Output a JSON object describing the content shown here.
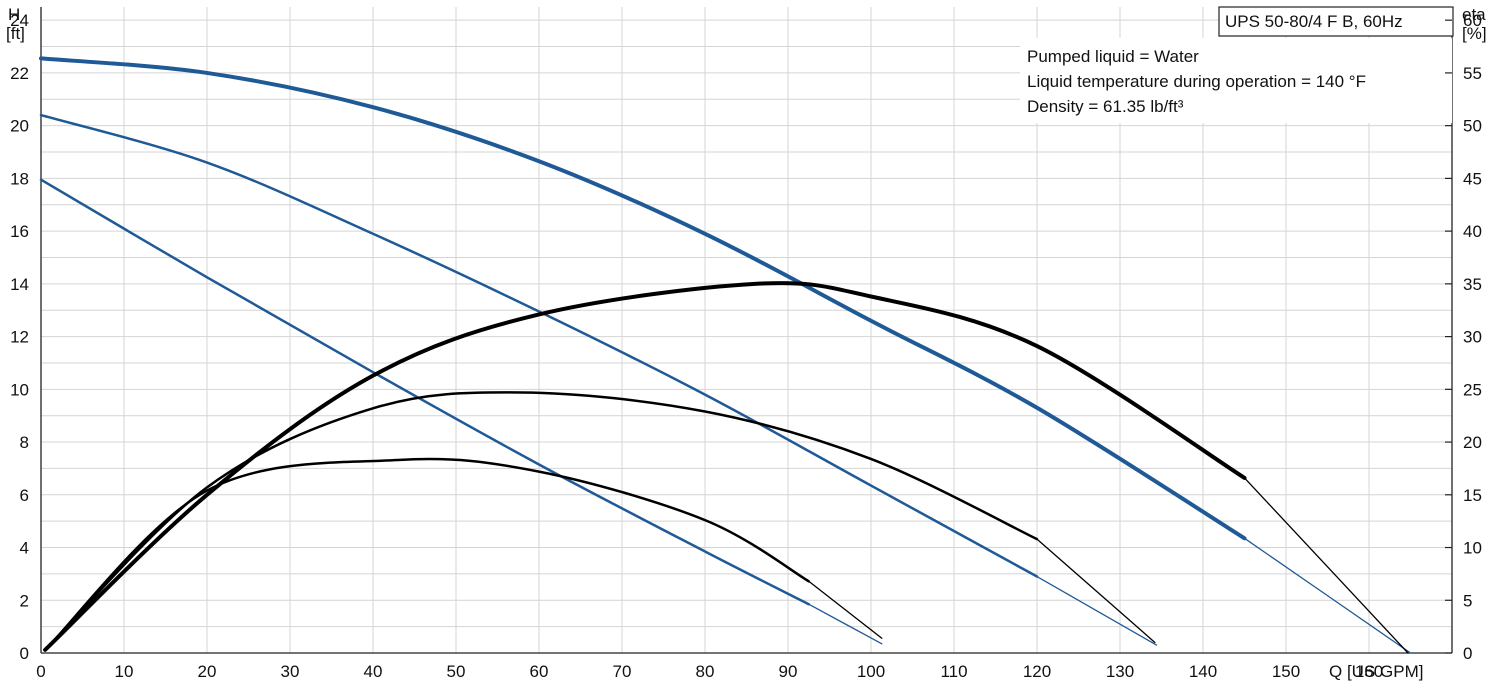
{
  "chart_data": {
    "type": "line",
    "title": "UPS 50-80/4 F B, 60Hz",
    "info_lines": [
      "Pumped liquid = Water",
      "Liquid temperature during operation = 140 °F",
      "Density = 61.35 lb/ft³"
    ],
    "y_left_label": [
      "H",
      "[ft]"
    ],
    "y_right_label": [
      "eta",
      "[%]"
    ],
    "x_label": "Q [US GPM]",
    "xlim": [
      0,
      170
    ],
    "ylim_left": [
      0,
      24.5
    ],
    "ylim_right": [
      0,
      61.25
    ],
    "x_ticks": [
      0,
      10,
      20,
      30,
      40,
      50,
      60,
      70,
      80,
      90,
      100,
      110,
      120,
      130,
      140,
      150,
      160
    ],
    "y_left_ticks": [
      0,
      2,
      4,
      6,
      8,
      10,
      12,
      14,
      16,
      18,
      20,
      22,
      24
    ],
    "y_right_ticks": [
      0,
      5,
      10,
      15,
      20,
      25,
      30,
      35,
      40,
      45,
      50,
      55,
      60
    ],
    "grid": true,
    "colors": {
      "head": "#1f5a96",
      "efficiency": "#000000",
      "grid": "#d4d4d4"
    },
    "series": [
      {
        "kind": "head",
        "axis": "left",
        "width_solid": 4,
        "x": [
          0,
          20,
          40,
          60,
          80,
          100,
          120,
          145,
          165
        ],
        "values": [
          22.55,
          22.0,
          20.7,
          18.65,
          15.9,
          12.6,
          9.3,
          4.35,
          0
        ],
        "solid_until": 145
      },
      {
        "kind": "head",
        "axis": "left",
        "width_solid": 2.5,
        "x": [
          0,
          20,
          40,
          60,
          80,
          100,
          120,
          134.4
        ],
        "values": [
          20.4,
          18.6,
          15.9,
          12.95,
          9.8,
          6.35,
          2.9,
          0.3
        ],
        "solid_until": 120
      },
      {
        "kind": "head",
        "axis": "left",
        "width_solid": 2.5,
        "x": [
          0,
          20,
          40,
          60,
          80,
          92.5,
          101.3
        ],
        "values": [
          17.95,
          14.25,
          10.65,
          7.15,
          3.85,
          1.85,
          0.35
        ],
        "solid_until": 92.5
      },
      {
        "kind": "efficiency",
        "axis": "right",
        "width_solid": 4,
        "x": [
          0.5,
          20,
          40,
          60,
          86,
          100,
          120,
          145,
          164.7
        ],
        "values": [
          0.3,
          15.0,
          26.3,
          32.1,
          35.0,
          33.8,
          29.1,
          16.6,
          0
        ],
        "solid_until": 145
      },
      {
        "kind": "efficiency",
        "axis": "right",
        "width_solid": 2.5,
        "x": [
          0.5,
          20,
          40,
          58,
          80,
          100,
          120,
          134.2
        ],
        "values": [
          0.3,
          15.7,
          23.2,
          24.7,
          22.9,
          18.4,
          10.8,
          1.0
        ],
        "solid_until": 120
      },
      {
        "kind": "efficiency",
        "axis": "right",
        "width_solid": 2.5,
        "x": [
          0.5,
          20,
          43,
          60,
          80,
          92.5,
          101.3
        ],
        "values": [
          0.3,
          15.4,
          18.3,
          17.2,
          12.6,
          6.8,
          1.4
        ],
        "solid_until": 92.5
      }
    ]
  }
}
